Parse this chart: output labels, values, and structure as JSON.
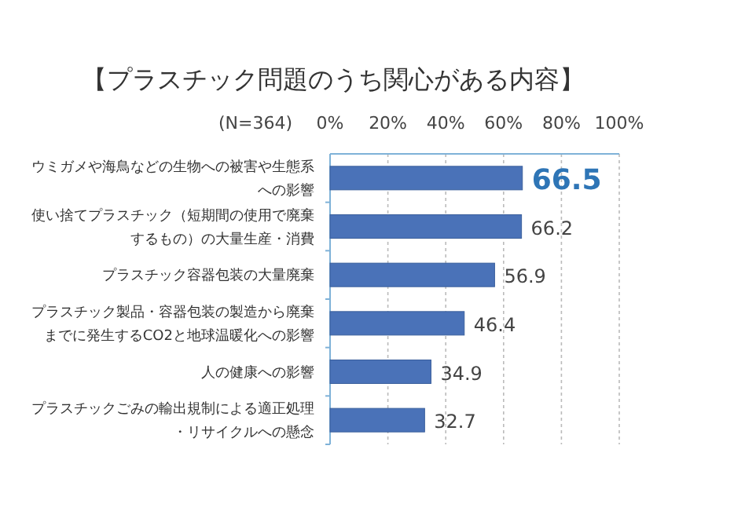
{
  "chart_data": {
    "type": "bar",
    "orientation": "horizontal",
    "title": "【プラスチック問題のうち関心がある内容】",
    "categories": [
      "ウミガメや海鳥などの生物への被害や生態系への影響",
      "使い捨てプラスチック（短期間の使用で廃棄するもの）の大量生産・消費",
      "プラスチック容器包装の大量廃棄",
      "プラスチック製品・容器包装の製造から廃棄までに発生するCO2と地球温暖化への影響",
      "人の健康への影響",
      "プラスチックごみの輸出規制による適正処理・リサイクルへの懸念"
    ],
    "values": [
      66.5,
      66.2,
      56.9,
      46.4,
      34.9,
      32.7
    ],
    "color": "#4a72b8",
    "xlim": [
      0,
      100
    ],
    "xticks": [
      {
        "value": 0,
        "label": "0%"
      },
      {
        "value": 20,
        "label": "20%"
      },
      {
        "value": 40,
        "label": "40%"
      },
      {
        "value": 60,
        "label": "60%"
      },
      {
        "value": 80,
        "label": "80%"
      },
      {
        "value": 100,
        "label": "100%"
      }
    ],
    "grid": "x",
    "data_labels": true,
    "annotations": [
      "(N=364)"
    ]
  }
}
